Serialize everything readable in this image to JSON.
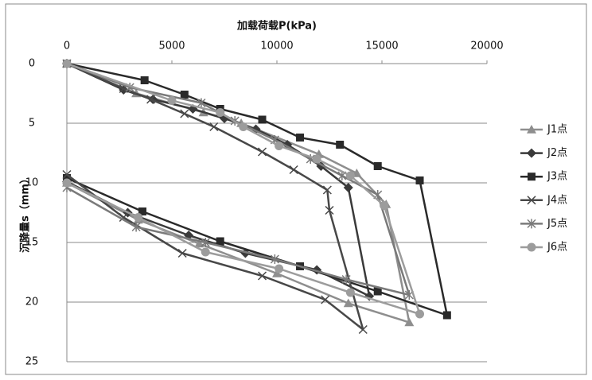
{
  "chart_data": {
    "type": "line",
    "xlabel": "加载荷载P(kPa)",
    "ylabel": "沉降量s（mm）",
    "xlim": [
      0,
      20000
    ],
    "xticks": [
      0,
      5000,
      10000,
      15000,
      20000
    ],
    "ylim": [
      0,
      25
    ],
    "yticks": [
      0,
      5,
      10,
      15,
      20,
      25
    ],
    "y_inverted": true,
    "x_axis_position": "top",
    "grid": true,
    "legend": "right",
    "series": [
      {
        "name": "J1点",
        "color": "#8e8e8e",
        "marker": "triangle",
        "x": [
          0,
          3300,
          6500,
          8300,
          12000,
          13800,
          15200,
          16300,
          13400,
          10000,
          6300,
          3400,
          0
        ],
        "values": [
          0,
          2.5,
          4.1,
          5.0,
          7.6,
          9.2,
          11.8,
          21.7,
          20.1,
          17.6,
          15.1,
          13.1,
          10.0
        ]
      },
      {
        "name": "J2点",
        "color": "#3a3a3a",
        "marker": "diamond",
        "x": [
          0,
          2700,
          4100,
          6000,
          7500,
          9000,
          10500,
          12100,
          13400,
          14400,
          11900,
          8500,
          5800,
          2900,
          0
        ],
        "values": [
          0,
          2.2,
          3.0,
          3.8,
          4.6,
          5.5,
          6.8,
          8.6,
          10.4,
          19.5,
          17.3,
          15.9,
          14.4,
          12.5,
          9.9
        ]
      },
      {
        "name": "J3点",
        "color": "#2a2a2a",
        "marker": "square",
        "x": [
          0,
          3700,
          5600,
          7300,
          9300,
          11100,
          13000,
          14800,
          16800,
          18100,
          14800,
          11100,
          7300,
          3600,
          0
        ],
        "values": [
          0,
          1.4,
          2.6,
          3.8,
          4.7,
          6.2,
          6.8,
          8.6,
          9.8,
          21.1,
          19.1,
          17.0,
          14.9,
          12.4,
          9.6
        ]
      },
      {
        "name": "J4点",
        "color": "#484848",
        "marker": "x",
        "x": [
          0,
          2700,
          4000,
          5600,
          7000,
          9300,
          10800,
          12400,
          12500,
          14100,
          12300,
          9300,
          5500,
          2700,
          0
        ],
        "values": [
          0,
          2.1,
          3.0,
          4.2,
          5.3,
          7.4,
          8.9,
          10.6,
          12.3,
          22.3,
          19.8,
          17.8,
          15.9,
          12.9,
          9.3
        ]
      },
      {
        "name": "J5点",
        "color": "#7a7a7a",
        "marker": "asterisk",
        "x": [
          0,
          3000,
          6400,
          8000,
          9900,
          11600,
          13100,
          14800,
          16300,
          13300,
          9900,
          6600,
          3300,
          0
        ],
        "values": [
          0,
          2.0,
          3.3,
          4.8,
          6.4,
          8.0,
          9.4,
          11.0,
          19.4,
          18.1,
          16.4,
          15.0,
          13.7,
          10.4
        ]
      },
      {
        "name": "J6点",
        "color": "#9c9c9c",
        "marker": "circle",
        "x": [
          0,
          5000,
          7300,
          8400,
          10100,
          11900,
          13500,
          15100,
          16800,
          13500,
          10100,
          6600,
          3400,
          0
        ],
        "values": [
          0,
          3.1,
          4.1,
          5.3,
          6.9,
          8.0,
          9.4,
          11.9,
          21.0,
          19.2,
          17.2,
          15.8,
          12.9,
          10.0
        ]
      }
    ]
  }
}
